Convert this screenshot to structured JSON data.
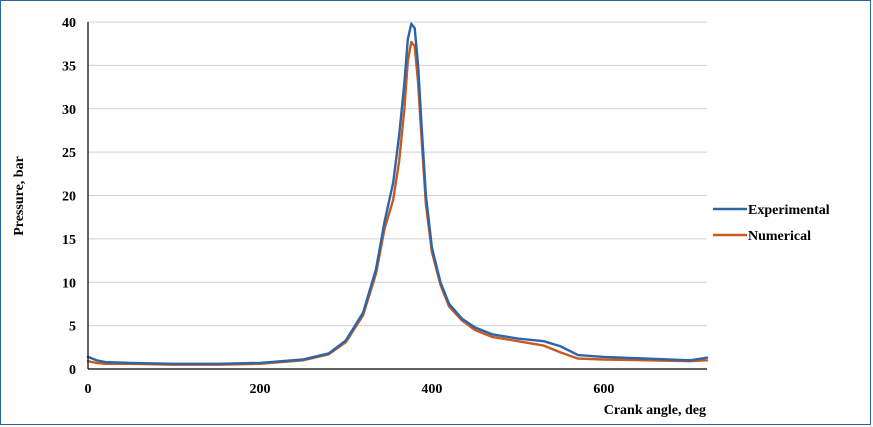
{
  "chart_data": {
    "type": "line",
    "title": "",
    "xlabel": "Crank angle, deg",
    "ylabel": "Pressure, bar",
    "xlim": [
      0,
      720
    ],
    "ylim": [
      0,
      40
    ],
    "x_ticks": [
      0,
      200,
      400,
      600
    ],
    "y_ticks": [
      0,
      5,
      10,
      15,
      20,
      25,
      30,
      35,
      40
    ],
    "grid": "horizontal",
    "legend_position": "right",
    "series": [
      {
        "name": "Experimental",
        "color": "#2e64a8",
        "x": [
          0,
          10,
          20,
          50,
          100,
          150,
          200,
          250,
          280,
          300,
          320,
          335,
          345,
          355,
          362,
          368,
          372,
          376,
          380,
          384,
          388,
          393,
          400,
          410,
          420,
          435,
          450,
          470,
          500,
          530,
          550,
          570,
          600,
          650,
          700,
          720
        ],
        "y": [
          1.4,
          1.0,
          0.8,
          0.7,
          0.6,
          0.6,
          0.7,
          1.1,
          1.8,
          3.3,
          6.5,
          11.5,
          17.0,
          21.5,
          27.0,
          33.0,
          38.0,
          39.8,
          39.3,
          35.0,
          28.0,
          20.0,
          14.0,
          10.0,
          7.5,
          5.8,
          4.8,
          4.0,
          3.5,
          3.2,
          2.6,
          1.6,
          1.4,
          1.2,
          1.0,
          1.3
        ]
      },
      {
        "name": "Numerical",
        "color": "#c55a22",
        "x": [
          0,
          10,
          20,
          50,
          100,
          150,
          200,
          250,
          280,
          300,
          320,
          335,
          345,
          355,
          362,
          368,
          372,
          376,
          380,
          384,
          388,
          393,
          400,
          410,
          420,
          435,
          450,
          470,
          500,
          530,
          550,
          570,
          600,
          650,
          700,
          720
        ],
        "y": [
          0.9,
          0.7,
          0.6,
          0.6,
          0.5,
          0.5,
          0.6,
          1.0,
          1.7,
          3.1,
          6.2,
          11.0,
          16.2,
          19.5,
          24.0,
          30.0,
          35.5,
          37.7,
          37.2,
          33.0,
          26.5,
          19.0,
          13.5,
          9.7,
          7.2,
          5.6,
          4.5,
          3.7,
          3.2,
          2.7,
          1.9,
          1.2,
          1.1,
          1.0,
          0.9,
          1.0
        ]
      }
    ]
  }
}
